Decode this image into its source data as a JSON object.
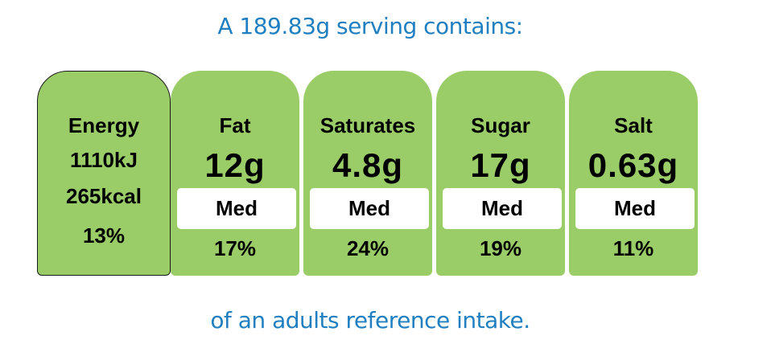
{
  "header_text": "A 189.83g serving contains:",
  "footer_text": "of an adults reference intake.",
  "colors": {
    "panel_green": "#9acd67",
    "heading_blue": "#1f7fc0",
    "level_box": "#ffffff"
  },
  "energy": {
    "label": "Energy",
    "kj": "1110kJ",
    "kcal": "265kcal",
    "percent": "13%"
  },
  "nutrients": [
    {
      "name": "Fat",
      "amount": "12g",
      "level": "Med",
      "percent": "17%"
    },
    {
      "name": "Saturates",
      "amount": "4.8g",
      "level": "Med",
      "percent": "24%"
    },
    {
      "name": "Sugar",
      "amount": "17g",
      "level": "Med",
      "percent": "19%"
    },
    {
      "name": "Salt",
      "amount": "0.63g",
      "level": "Med",
      "percent": "11%"
    }
  ]
}
